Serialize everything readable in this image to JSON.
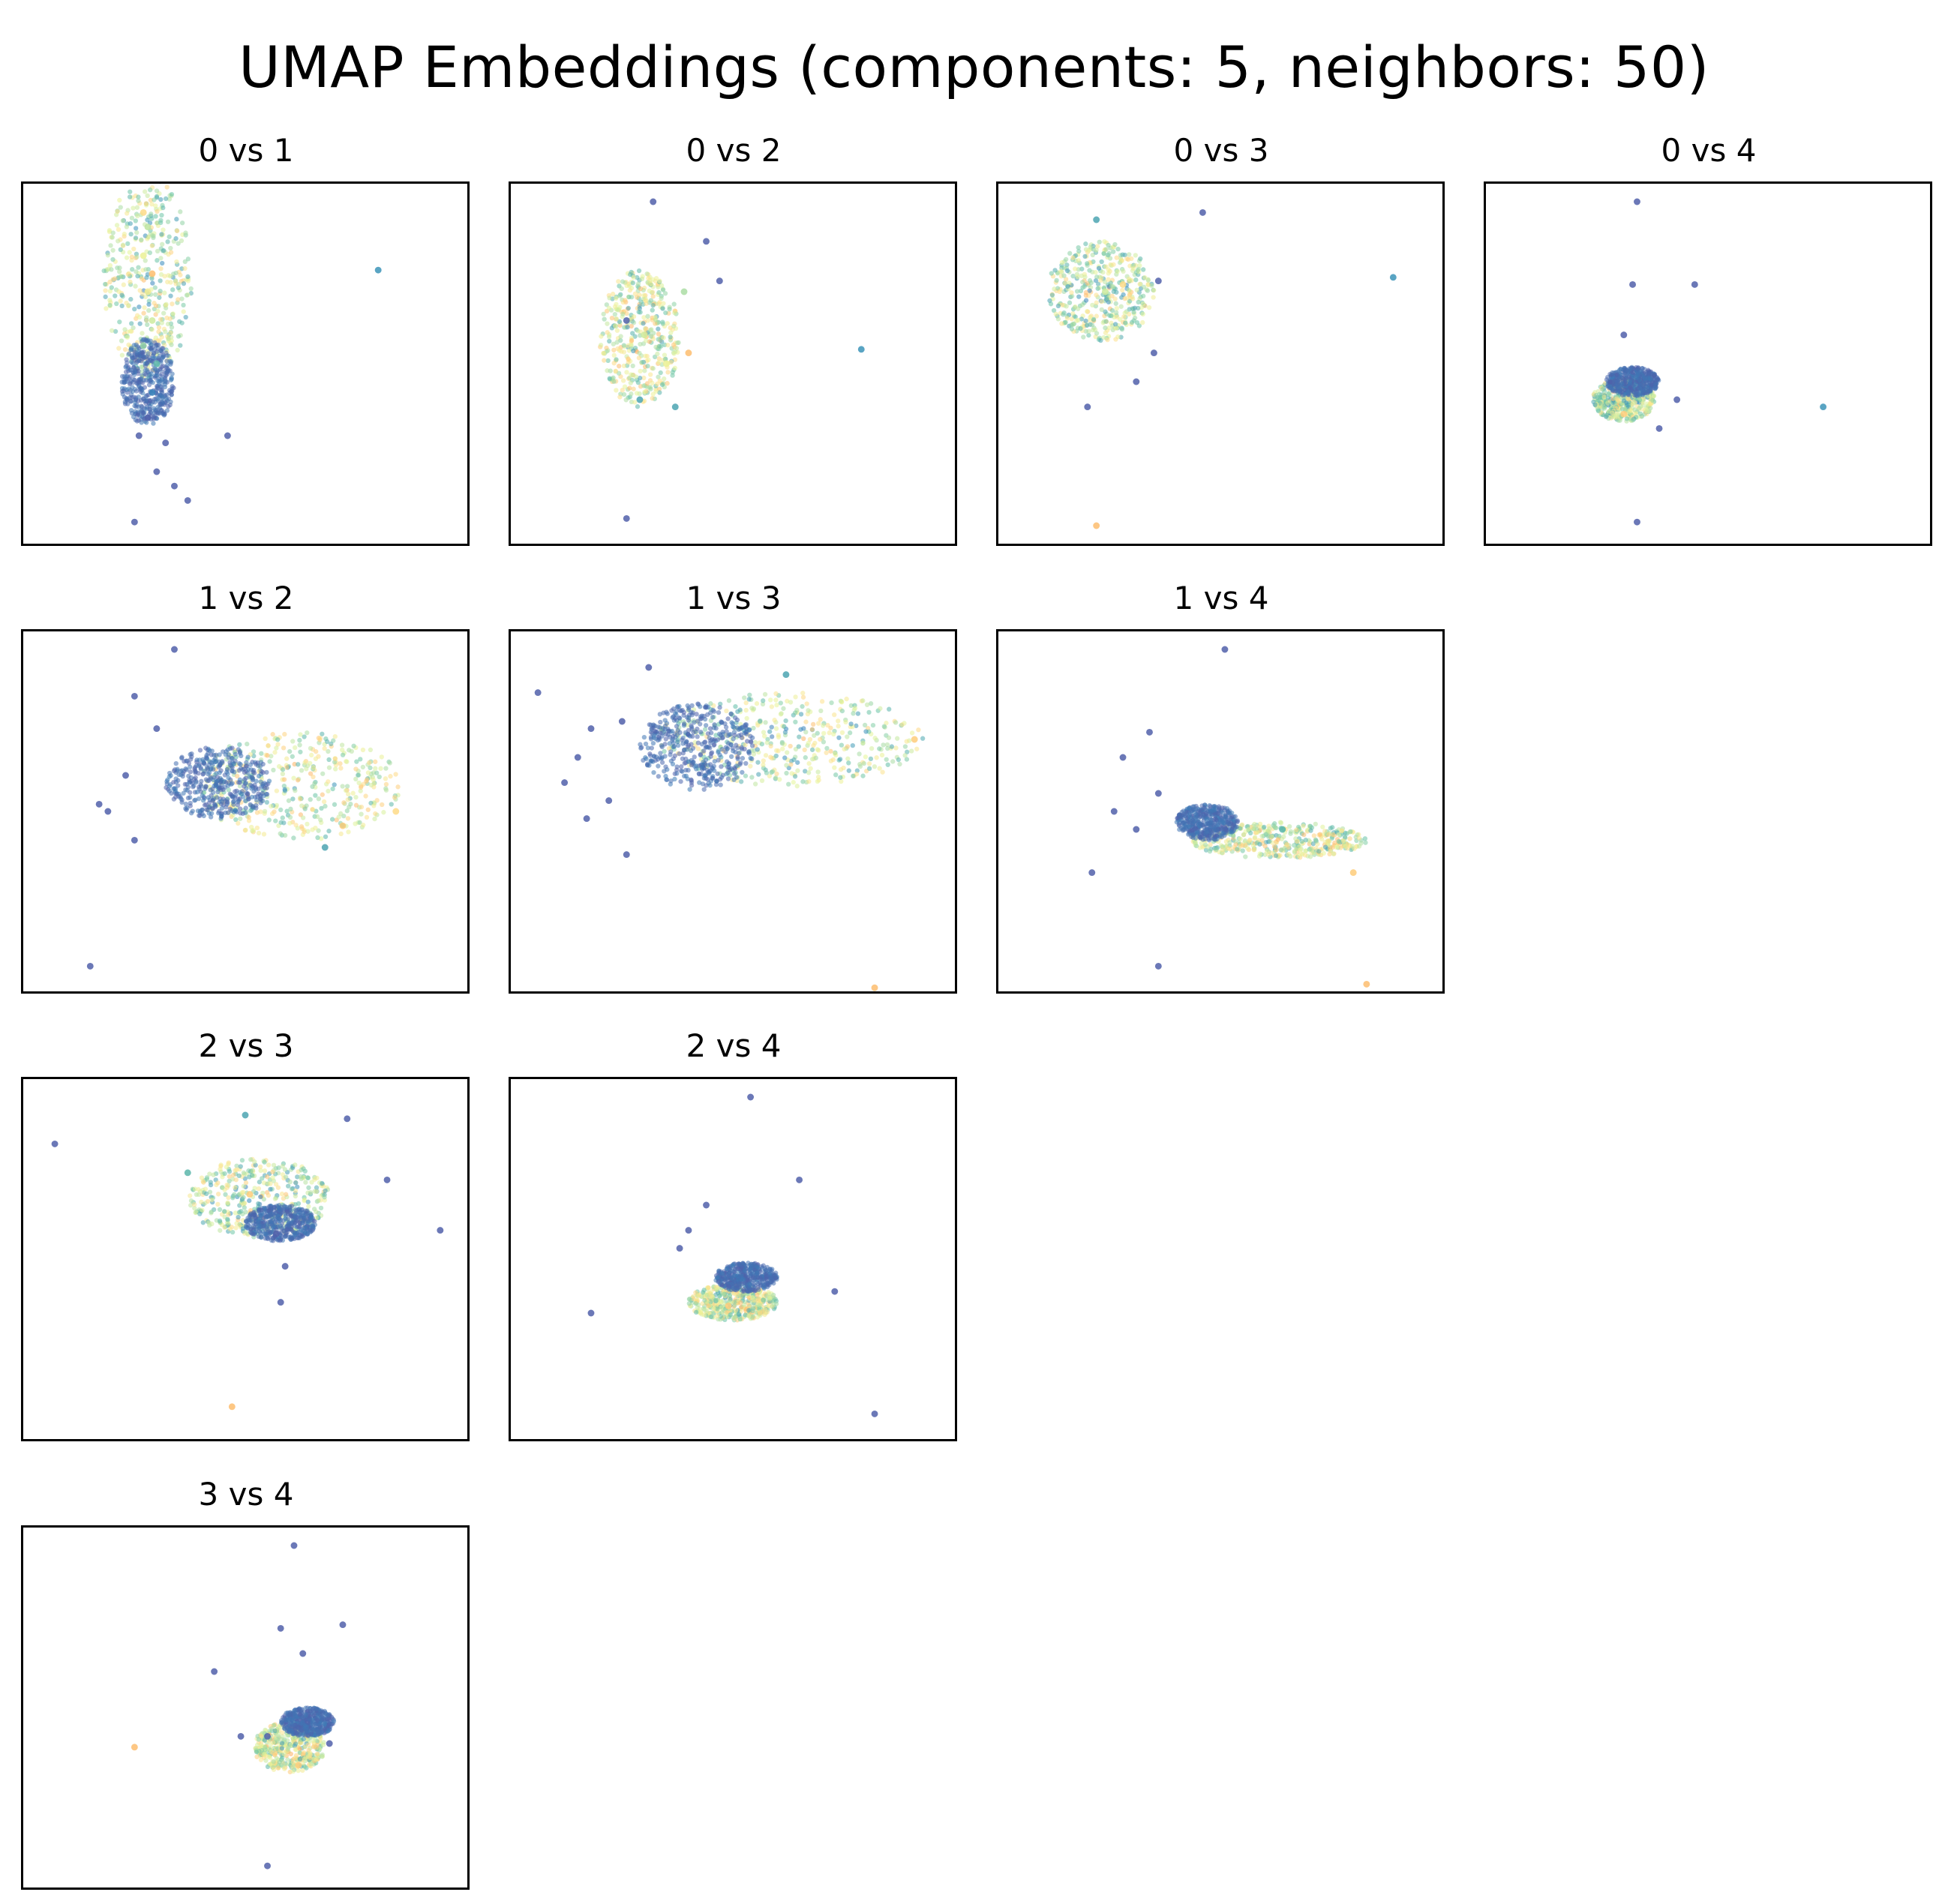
{
  "figure": {
    "title": "UMAP Embeddings (components: 5, neighbors: 50)"
  },
  "colors": {
    "cmap": "Spectral_r",
    "low": "#5e4fa2",
    "mid_low": "#3288bd",
    "mid": "#66c2a5",
    "mid_high": "#abdda4",
    "pale": "#e6f598",
    "warm": "#fee08b",
    "orange": "#fdae61"
  },
  "chart_data": [
    {
      "type": "scatter",
      "title": "0 vs 1",
      "axes_visible": false,
      "grid": false,
      "xlim": [
        0,
        100
      ],
      "ylim": [
        0,
        100
      ],
      "points": [
        [
          28,
          88,
          0.55
        ],
        [
          27,
          80,
          0.7
        ],
        [
          28,
          70,
          0.75
        ],
        [
          29,
          62,
          0.6
        ],
        [
          27,
          55,
          0.45
        ],
        [
          30,
          50,
          0.3
        ],
        [
          29,
          42,
          0.15
        ],
        [
          28,
          35,
          0.05
        ],
        [
          26,
          30,
          0.05
        ],
        [
          32,
          28,
          0.05
        ],
        [
          30,
          20,
          0.05
        ],
        [
          34,
          16,
          0.05
        ],
        [
          37,
          12,
          0.05
        ],
        [
          25,
          6,
          0.05
        ],
        [
          46,
          30,
          0.05
        ],
        [
          80,
          76,
          0.2
        ],
        [
          27,
          92,
          0.85
        ],
        [
          29,
          75,
          0.95
        ]
      ],
      "clusters": [
        {
          "cx": 28,
          "cy": 74,
          "rx": 10,
          "ry": 28,
          "v": 0.55
        },
        {
          "cx": 28,
          "cy": 45,
          "rx": 6,
          "ry": 12,
          "v": 0.05
        }
      ]
    },
    {
      "type": "scatter",
      "title": "0 vs 2",
      "axes_visible": false,
      "grid": false,
      "xlim": [
        0,
        100
      ],
      "ylim": [
        0,
        100
      ],
      "points": [
        [
          32,
          95,
          0.05
        ],
        [
          44,
          84,
          0.05
        ],
        [
          47,
          73,
          0.05
        ],
        [
          26,
          62,
          0.05
        ],
        [
          39,
          70,
          0.5
        ],
        [
          30,
          58,
          0.6
        ],
        [
          35,
          50,
          0.7
        ],
        [
          29,
          40,
          0.25
        ],
        [
          37,
          38,
          0.25
        ],
        [
          79,
          54,
          0.2
        ],
        [
          26,
          7,
          0.05
        ],
        [
          40,
          53,
          0.95
        ]
      ],
      "clusters": [
        {
          "cx": 29,
          "cy": 57,
          "rx": 9,
          "ry": 19,
          "v": 0.6
        }
      ]
    },
    {
      "type": "scatter",
      "title": "0 vs 3",
      "axes_visible": false,
      "grid": false,
      "xlim": [
        0,
        100
      ],
      "ylim": [
        0,
        100
      ],
      "points": [
        [
          22,
          90,
          0.25
        ],
        [
          46,
          92,
          0.05
        ],
        [
          36,
          73,
          0.05
        ],
        [
          35,
          53,
          0.05
        ],
        [
          31,
          45,
          0.05
        ],
        [
          20,
          38,
          0.05
        ],
        [
          89,
          74,
          0.2
        ],
        [
          22,
          5,
          0.95
        ],
        [
          24,
          70,
          0.6
        ],
        [
          28,
          72,
          0.85
        ]
      ],
      "clusters": [
        {
          "cx": 23,
          "cy": 70,
          "rx": 12,
          "ry": 14,
          "v": 0.55
        }
      ]
    },
    {
      "type": "scatter",
      "title": "0 vs 4",
      "axes_visible": false,
      "grid": false,
      "xlim": [
        0,
        100
      ],
      "ylim": [
        0,
        100
      ],
      "points": [
        [
          34,
          95,
          0.05
        ],
        [
          33,
          72,
          0.05
        ],
        [
          47,
          72,
          0.05
        ],
        [
          31,
          58,
          0.05
        ],
        [
          43,
          40,
          0.05
        ],
        [
          39,
          32,
          0.05
        ],
        [
          76,
          38,
          0.2
        ],
        [
          34,
          6,
          0.05
        ],
        [
          31,
          36,
          0.9
        ]
      ],
      "clusters": [
        {
          "cx": 31,
          "cy": 40,
          "rx": 7,
          "ry": 6,
          "v": 0.55
        },
        {
          "cx": 33,
          "cy": 45,
          "rx": 6,
          "ry": 4,
          "v": 0.05
        }
      ]
    },
    {
      "type": "scatter",
      "title": "1 vs 2",
      "axes_visible": false,
      "grid": false,
      "xlim": [
        0,
        100
      ],
      "ylim": [
        0,
        100
      ],
      "points": [
        [
          34,
          95,
          0.05
        ],
        [
          25,
          82,
          0.05
        ],
        [
          30,
          73,
          0.05
        ],
        [
          23,
          60,
          0.05
        ],
        [
          19,
          50,
          0.05
        ],
        [
          25,
          42,
          0.05
        ],
        [
          17,
          52,
          0.05
        ],
        [
          15,
          7,
          0.05
        ],
        [
          72,
          46,
          0.9
        ],
        [
          84,
          50,
          0.85
        ],
        [
          68,
          40,
          0.25
        ]
      ],
      "clusters": [
        {
          "cx": 62,
          "cy": 57,
          "rx": 23,
          "ry": 15,
          "v": 0.6
        },
        {
          "cx": 44,
          "cy": 58,
          "rx": 12,
          "ry": 10,
          "v": 0.05
        }
      ]
    },
    {
      "type": "scatter",
      "title": "1 vs 3",
      "axes_visible": false,
      "grid": false,
      "xlim": [
        0,
        100
      ],
      "ylim": [
        0,
        100
      ],
      "points": [
        [
          6,
          83,
          0.05
        ],
        [
          31,
          90,
          0.05
        ],
        [
          18,
          73,
          0.05
        ],
        [
          15,
          65,
          0.05
        ],
        [
          12,
          58,
          0.05
        ],
        [
          22,
          53,
          0.05
        ],
        [
          17,
          48,
          0.05
        ],
        [
          26,
          38,
          0.05
        ],
        [
          25,
          75,
          0.05
        ],
        [
          82,
          1,
          0.95
        ],
        [
          91,
          70,
          0.9
        ],
        [
          62,
          88,
          0.25
        ]
      ],
      "clusters": [
        {
          "cx": 63,
          "cy": 70,
          "rx": 30,
          "ry": 13,
          "v": 0.55
        },
        {
          "cx": 42,
          "cy": 68,
          "rx": 13,
          "ry": 12,
          "v": 0.05
        }
      ]
    },
    {
      "type": "scatter",
      "title": "1 vs 4",
      "axes_visible": false,
      "grid": false,
      "xlim": [
        0,
        100
      ],
      "ylim": [
        0,
        100
      ],
      "points": [
        [
          51,
          95,
          0.05
        ],
        [
          34,
          72,
          0.05
        ],
        [
          28,
          65,
          0.05
        ],
        [
          26,
          50,
          0.05
        ],
        [
          31,
          45,
          0.05
        ],
        [
          21,
          33,
          0.05
        ],
        [
          36,
          55,
          0.05
        ],
        [
          36,
          7,
          0.05
        ],
        [
          83,
          2,
          0.95
        ],
        [
          80,
          33,
          0.9
        ],
        [
          64,
          45,
          0.3
        ]
      ],
      "clusters": [
        {
          "cx": 63,
          "cy": 42,
          "rx": 20,
          "ry": 5,
          "v": 0.6
        },
        {
          "cx": 47,
          "cy": 47,
          "rx": 7,
          "ry": 5,
          "v": 0.05
        }
      ]
    },
    {
      "type": "scatter",
      "title": "2 vs 3",
      "axes_visible": false,
      "grid": false,
      "xlim": [
        0,
        100
      ],
      "ylim": [
        0,
        100
      ],
      "points": [
        [
          7,
          82,
          0.05
        ],
        [
          73,
          89,
          0.05
        ],
        [
          82,
          72,
          0.05
        ],
        [
          94,
          58,
          0.05
        ],
        [
          57,
          57,
          0.05
        ],
        [
          59,
          48,
          0.05
        ],
        [
          58,
          38,
          0.05
        ],
        [
          47,
          9,
          0.95
        ],
        [
          50,
          90,
          0.25
        ],
        [
          37,
          74,
          0.3
        ],
        [
          51,
          68,
          0.9
        ]
      ],
      "clusters": [
        {
          "cx": 53,
          "cy": 67,
          "rx": 16,
          "ry": 11,
          "v": 0.55
        },
        {
          "cx": 58,
          "cy": 60,
          "rx": 8,
          "ry": 5,
          "v": 0.05
        }
      ]
    },
    {
      "type": "scatter",
      "title": "2 vs 4",
      "axes_visible": false,
      "grid": false,
      "xlim": [
        0,
        100
      ],
      "ylim": [
        0,
        100
      ],
      "points": [
        [
          54,
          95,
          0.05
        ],
        [
          65,
          72,
          0.05
        ],
        [
          44,
          65,
          0.05
        ],
        [
          40,
          58,
          0.05
        ],
        [
          38,
          53,
          0.05
        ],
        [
          18,
          35,
          0.05
        ],
        [
          73,
          41,
          0.05
        ],
        [
          82,
          7,
          0.05
        ],
        [
          49,
          37,
          0.9
        ]
      ],
      "clusters": [
        {
          "cx": 50,
          "cy": 38,
          "rx": 10,
          "ry": 5,
          "v": 0.6
        },
        {
          "cx": 53,
          "cy": 45,
          "rx": 7,
          "ry": 4,
          "v": 0.05
        }
      ]
    },
    {
      "type": "scatter",
      "title": "3 vs 4",
      "axes_visible": false,
      "grid": false,
      "xlim": [
        0,
        100
      ],
      "ylim": [
        0,
        100
      ],
      "points": [
        [
          61,
          95,
          0.05
        ],
        [
          58,
          72,
          0.05
        ],
        [
          72,
          73,
          0.05
        ],
        [
          63,
          65,
          0.05
        ],
        [
          43,
          60,
          0.05
        ],
        [
          49,
          42,
          0.05
        ],
        [
          55,
          42,
          0.05
        ],
        [
          69,
          40,
          0.05
        ],
        [
          25,
          39,
          0.95
        ],
        [
          55,
          6,
          0.05
        ],
        [
          62,
          34,
          0.9
        ]
      ],
      "clusters": [
        {
          "cx": 60,
          "cy": 39,
          "rx": 8,
          "ry": 7,
          "v": 0.6
        },
        {
          "cx": 64,
          "cy": 46,
          "rx": 6,
          "ry": 4,
          "v": 0.05
        }
      ]
    }
  ]
}
